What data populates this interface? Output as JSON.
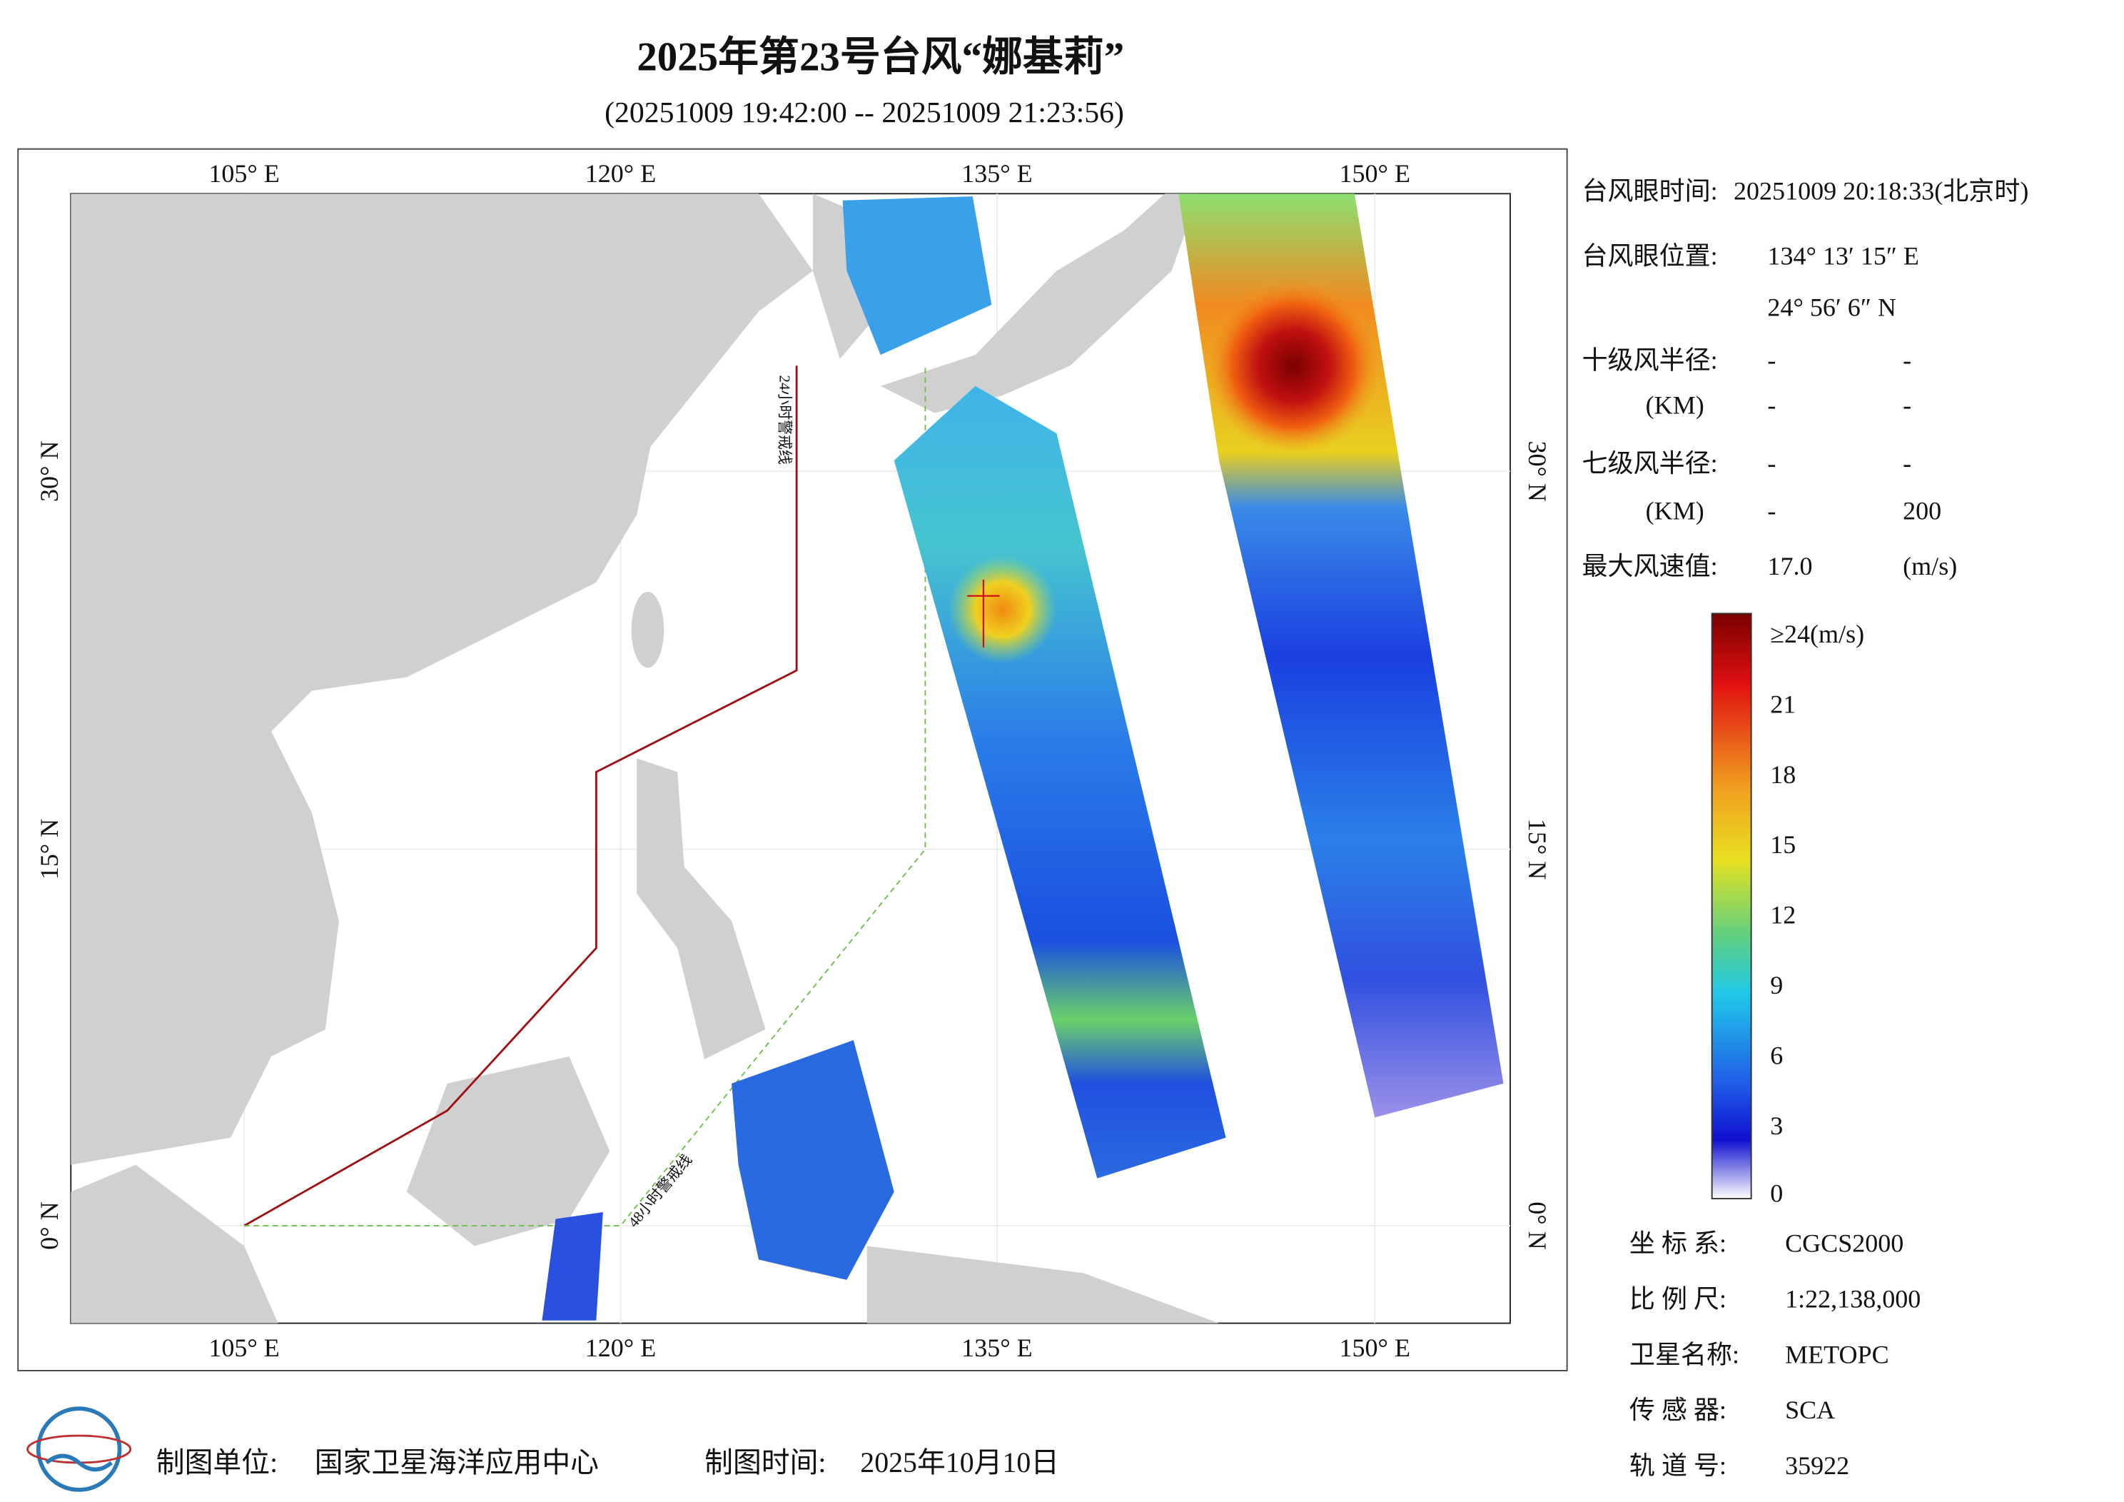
{
  "header": {
    "title": "2025年第23号台风“娜基莉”",
    "subtitle": "(20251009 19:42:00 -- 20251009 21:23:56)"
  },
  "map": {
    "lon_labels": [
      "105° E",
      "120° E",
      "135° E",
      "150° E"
    ],
    "lat_labels": [
      "30° N",
      "15° N",
      "0° N"
    ],
    "line_labels": [
      "24小时警戒线",
      "48小时警戒线"
    ]
  },
  "info": [
    [
      "台风眼时间:",
      "20251009 20:18:33(北京时)"
    ],
    [
      "台风眼位置:",
      "134° 13′ 15″ E"
    ],
    [
      "",
      "24° 56′ 6″ N"
    ],
    [
      "十级风半径:",
      "-",
      "-"
    ],
    [
      "(KM)",
      "-",
      "-"
    ],
    [
      "七级风半径:",
      "-",
      "-"
    ],
    [
      "(KM)",
      "-",
      "200"
    ],
    [
      "最大风速值:",
      "17.0",
      "(m/s)"
    ]
  ],
  "colorbar": {
    "labels": [
      "≥24(m/s)",
      "21",
      "18",
      "15",
      "12",
      "9",
      "6",
      "3",
      "0"
    ]
  },
  "meta": [
    [
      "坐 标 系:",
      "CGCS2000"
    ],
    [
      "比 例 尺:",
      "1:22,138,000"
    ],
    [
      "卫星名称:",
      "METOPC"
    ],
    [
      "传 感 器:",
      "SCA"
    ],
    [
      "轨 道 号:",
      "35922"
    ]
  ],
  "footer": {
    "unit_label": "制图单位:",
    "unit": "国家卫星海洋应用中心",
    "time_label": "制图时间:",
    "time": "2025年10月10日"
  }
}
